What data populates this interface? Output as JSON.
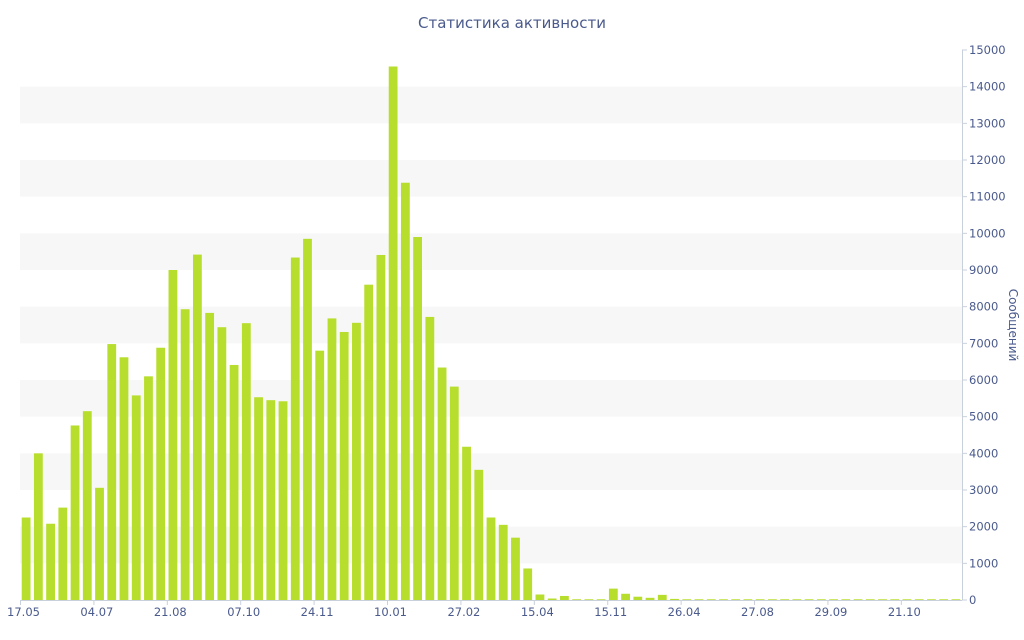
{
  "chart_data": {
    "type": "bar",
    "title": "Статистика активности",
    "ylabel": "Сообщений",
    "xlabel": "",
    "ylim": [
      0,
      15000
    ],
    "y_ticks": [
      0,
      1000,
      2000,
      3000,
      4000,
      5000,
      6000,
      7000,
      8000,
      9000,
      10000,
      11000,
      12000,
      13000,
      14000,
      15000
    ],
    "x_tick_labels": [
      "17.05",
      "04.07",
      "21.08",
      "07.10",
      "24.11",
      "10.01",
      "27.02",
      "15.04",
      "15.11",
      "26.04",
      "27.08",
      "29.09",
      "21.10"
    ],
    "y_axis_position": "right",
    "grid": "alternating horizontal bands",
    "series": [
      {
        "color": "#b8de2d",
        "values": [
          2250,
          4000,
          2080,
          2520,
          4760,
          5150,
          3060,
          6980,
          6620,
          5580,
          6100,
          6880,
          9000,
          7930,
          9420,
          7830,
          7440,
          6410,
          7550,
          5530,
          5450,
          5420,
          9340,
          9850,
          6800,
          7680,
          7310,
          7560,
          8600,
          9410,
          14550,
          11380,
          9900,
          7720,
          6340,
          5820,
          4180,
          3550,
          2250,
          2050,
          1700,
          860,
          150,
          40,
          110,
          20,
          20,
          20,
          310,
          170,
          90,
          60,
          140,
          30,
          20,
          20,
          20,
          20,
          20,
          20,
          20,
          20,
          20,
          20,
          20,
          20,
          20,
          20,
          20,
          20,
          20,
          20,
          20,
          20,
          20,
          20,
          20
        ]
      }
    ]
  }
}
